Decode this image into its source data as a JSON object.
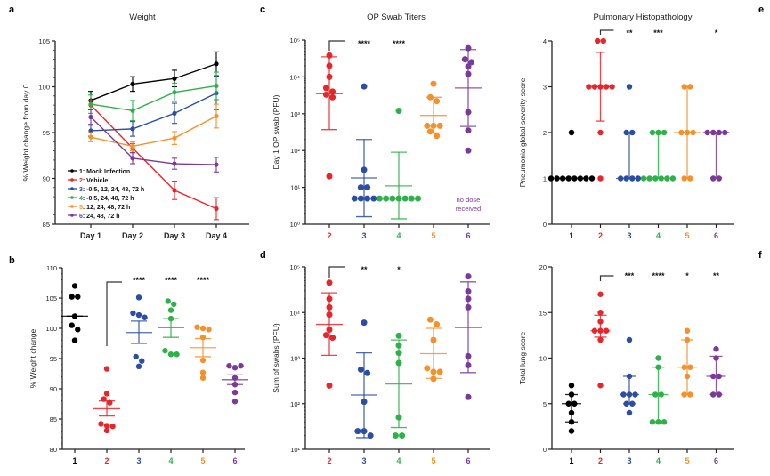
{
  "colors": {
    "g1": "#000000",
    "g2": "#e8262a",
    "g3": "#2b4ea2",
    "g4": "#2fb04a",
    "g5": "#f5912b",
    "g6": "#7a3b98",
    "axis": "#222222"
  },
  "chart_data": [
    {
      "id": "a",
      "panel_label": "a",
      "type": "line",
      "title": "Weight",
      "xlabel": "",
      "ylabel": "% Weight change from day 0",
      "categories": [
        "Day 1",
        "Day 2",
        "Day 3",
        "Day 4"
      ],
      "ylim": [
        85,
        105
      ],
      "yticks": [
        85,
        90,
        95,
        100,
        105
      ],
      "legend_position": "bottom-left",
      "series": [
        {
          "name": "1: Mock Infection",
          "num": "1",
          "label": ": Mock Infection",
          "color": "g1",
          "values": [
            98.5,
            100.3,
            100.9,
            102.5
          ],
          "err": [
            1.0,
            0.8,
            0.9,
            1.3
          ]
        },
        {
          "name": "2: Vehicle",
          "num": "2",
          "label": ": Vehicle",
          "color": "g2",
          "values": [
            98.0,
            93.3,
            88.7,
            86.7
          ],
          "err": [
            0.5,
            0.5,
            1.0,
            1.2
          ]
        },
        {
          "name": "3: -0.5, 12, 24, 48, 72 h",
          "num": "3",
          "label": ": -0.5, 12, 24, 48, 72 h",
          "color": "g3",
          "values": [
            95.2,
            95.4,
            97.1,
            99.3
          ],
          "err": [
            0.6,
            0.8,
            1.1,
            1.8
          ]
        },
        {
          "name": "4: -0.5, 24, 48, 72 h",
          "num": "4",
          "label": ": -0.5, 24, 48, 72 h",
          "color": "g4",
          "values": [
            98.1,
            97.4,
            99.4,
            100.1
          ],
          "err": [
            1.0,
            1.1,
            1.0,
            1.5
          ]
        },
        {
          "name": "5: 12, 24, 48, 72 h",
          "num": "5",
          "label": ": 12, 24, 48, 72 h",
          "color": "g5",
          "values": [
            94.5,
            93.5,
            94.4,
            96.8
          ],
          "err": [
            0.5,
            0.5,
            0.7,
            1.3
          ]
        },
        {
          "name": "6: 24, 48, 72 h",
          "num": "6",
          "label": ": 24, 48, 72 h",
          "color": "g6",
          "values": [
            96.7,
            92.2,
            91.6,
            91.5
          ],
          "err": [
            0.8,
            0.6,
            0.6,
            0.8
          ]
        }
      ]
    },
    {
      "id": "b",
      "panel_label": "b",
      "type": "scatter",
      "title": "",
      "xlabel": "",
      "ylabel": "% Weight change",
      "categories": [
        "1",
        "2",
        "3",
        "4",
        "5",
        "6"
      ],
      "ylim": [
        80,
        110
      ],
      "yticks": [
        80,
        85,
        90,
        95,
        100,
        105,
        110
      ],
      "comparison_ref": "2",
      "groups": [
        {
          "cat": "1",
          "color": "g1",
          "points": [
            107.0,
            105.2,
            105.2,
            102.0,
            100.5,
            99.8,
            98.0
          ],
          "mean": 102.0,
          "err": [
            102.0,
            102.0
          ],
          "sig": ""
        },
        {
          "cat": "2",
          "color": "g2",
          "points": [
            93.3,
            89.2,
            88.3,
            87.7,
            84.2,
            83.9,
            83.8,
            83.1
          ],
          "mean": 86.7,
          "err": [
            85.5,
            88.0
          ],
          "sig": ""
        },
        {
          "cat": "3",
          "color": "g3",
          "points": [
            105.1,
            102.5,
            102.2,
            101.8,
            95.3,
            94.6,
            93.7
          ],
          "mean": 99.3,
          "err": [
            97.5,
            101.2
          ],
          "sig": "****"
        },
        {
          "cat": "4",
          "color": "g4",
          "points": [
            104.5,
            104.0,
            103.0,
            101.6,
            96.3,
            95.7,
            95.7
          ],
          "mean": 100.1,
          "err": [
            98.5,
            101.6
          ],
          "sig": "****"
        },
        {
          "cat": "5",
          "color": "g5",
          "points": [
            100.2,
            100.0,
            99.8,
            98.5,
            94.7,
            92.7,
            91.8
          ],
          "mean": 96.8,
          "err": [
            95.3,
            98.3
          ],
          "sig": "****"
        },
        {
          "cat": "6",
          "color": "g6",
          "points": [
            93.8,
            93.5,
            93.8,
            91.8,
            90.7,
            89.4,
            87.9
          ],
          "mean": 91.5,
          "err": [
            90.7,
            92.3
          ],
          "sig": ""
        }
      ]
    },
    {
      "id": "c",
      "panel_label": "c",
      "type": "scatter",
      "title": "OP Swab Titers",
      "xlabel": "",
      "ylabel": "Day 1 OP swab (PFU)",
      "yscale": "log",
      "categories": [
        "2",
        "3",
        "4",
        "5",
        "6"
      ],
      "ylim": [
        1,
        100000
      ],
      "yticks": [
        1,
        10,
        100,
        1000,
        10000,
        100000
      ],
      "ytick_labels": [
        "10⁰",
        "10¹",
        "10²",
        "10³",
        "10⁴",
        "10⁵"
      ],
      "comparison_ref": "2",
      "annotation": [
        "no dose",
        "received"
      ],
      "groups": [
        {
          "cat": "2",
          "color": "g2",
          "points": [
            38000,
            20000,
            10000,
            5000,
            4000,
            3300,
            2800,
            20
          ],
          "mean": 3500,
          "err": [
            370,
            35000
          ],
          "sig": ""
        },
        {
          "cat": "3",
          "color": "g3",
          "points": [
            5500,
            30,
            10,
            10,
            5,
            5,
            5,
            5
          ],
          "mean": 18,
          "err": [
            1.6,
            200
          ],
          "sig": "****"
        },
        {
          "cat": "4",
          "color": "g4",
          "points": [
            1200,
            5,
            5,
            5,
            5,
            5,
            5,
            5
          ],
          "mean": 11,
          "err": [
            1.4,
            90
          ],
          "sig": "****"
        },
        {
          "cat": "5",
          "color": "g5",
          "points": [
            6500,
            2800,
            2200,
            470,
            470,
            470,
            330,
            250
          ],
          "mean": 900,
          "err": [
            300,
            2800
          ],
          "sig": ""
        },
        {
          "cat": "6",
          "color": "g6",
          "points": [
            60000,
            30000,
            25000,
            19000,
            12000,
            1100,
            350,
            100
          ],
          "mean": 5000,
          "err": [
            450,
            55000
          ],
          "sig": ""
        }
      ]
    },
    {
      "id": "d",
      "panel_label": "d",
      "type": "scatter",
      "title": "",
      "xlabel": "",
      "ylabel": "Sum of swabs (PFU)",
      "yscale": "log",
      "categories": [
        "2",
        "3",
        "4",
        "5",
        "6"
      ],
      "ylim": [
        10,
        100000
      ],
      "yticks": [
        10,
        100,
        1000,
        10000,
        100000
      ],
      "ytick_labels": [
        "10¹",
        "10²",
        "10³",
        "10⁴",
        "10⁵"
      ],
      "comparison_ref": "2",
      "groups": [
        {
          "cat": "2",
          "color": "g2",
          "points": [
            45000,
            20000,
            13000,
            9000,
            4200,
            3200,
            2800,
            250
          ],
          "mean": 5500,
          "err": [
            1150,
            27000
          ],
          "sig": ""
        },
        {
          "cat": "3",
          "color": "g3",
          "points": [
            6000,
            560,
            470,
            110,
            25,
            25,
            20
          ],
          "mean": 155,
          "err": [
            18,
            1300
          ],
          "sig": "**"
        },
        {
          "cat": "4",
          "color": "g4",
          "points": [
            3100,
            1900,
            1300,
            780,
            50,
            20,
            20
          ],
          "mean": 270,
          "err": [
            30,
            2500
          ],
          "sig": "*"
        },
        {
          "cat": "5",
          "color": "g5",
          "points": [
            7000,
            5500,
            2500,
            600,
            500,
            500,
            350
          ],
          "mean": 1250,
          "err": [
            360,
            4500
          ],
          "sig": ""
        },
        {
          "cat": "6",
          "color": "g6",
          "points": [
            62000,
            29000,
            20000,
            13000,
            1100,
            700,
            140
          ],
          "mean": 4700,
          "err": [
            480,
            47000
          ],
          "sig": ""
        }
      ]
    },
    {
      "id": "e",
      "panel_label": "e",
      "type": "scatter",
      "title": "Pulmonary Histopathology",
      "xlabel": "",
      "ylabel": "Pneumonia global severity score",
      "categories": [
        "1",
        "2",
        "3",
        "4",
        "5",
        "6"
      ],
      "ylim": [
        0,
        4
      ],
      "yticks": [
        0,
        1,
        2,
        3,
        4
      ],
      "comparison_ref": "2",
      "groups": [
        {
          "cat": "1",
          "color": "g1",
          "points": [
            2,
            1,
            1,
            1,
            1,
            1,
            1,
            1,
            1
          ],
          "mean": 1,
          "err": [
            1,
            1
          ],
          "sig": ""
        },
        {
          "cat": "2",
          "color": "g2",
          "points": [
            4,
            4,
            3,
            3,
            3,
            3,
            3,
            2,
            1
          ],
          "mean": 3,
          "err": [
            2.25,
            3.75
          ],
          "sig": ""
        },
        {
          "cat": "3",
          "color": "g3",
          "points": [
            3,
            2,
            2,
            1,
            1,
            1,
            1
          ],
          "mean": 1,
          "err": [
            1,
            2
          ],
          "sig": "**"
        },
        {
          "cat": "4",
          "color": "g4",
          "points": [
            2,
            2,
            2,
            1,
            1,
            1,
            1,
            1,
            1
          ],
          "mean": 1,
          "err": [
            1,
            2
          ],
          "sig": "***"
        },
        {
          "cat": "5",
          "color": "g5",
          "points": [
            3,
            3,
            2,
            2,
            2,
            1,
            1
          ],
          "mean": 2,
          "err": [
            1,
            3
          ],
          "sig": ""
        },
        {
          "cat": "6",
          "color": "g6",
          "points": [
            2,
            2,
            2,
            2,
            1,
            1
          ],
          "mean": 2,
          "err": [
            1,
            2
          ],
          "sig": "*"
        }
      ]
    },
    {
      "id": "f",
      "panel_label": "f",
      "type": "scatter",
      "title": "",
      "xlabel": "",
      "ylabel": "Total lung score",
      "categories": [
        "1",
        "2",
        "3",
        "4",
        "5",
        "6"
      ],
      "ylim": [
        0,
        20
      ],
      "yticks": [
        0,
        5,
        10,
        15,
        20
      ],
      "comparison_ref": "2",
      "groups": [
        {
          "cat": "1",
          "color": "g1",
          "points": [
            7,
            6,
            5,
            5,
            4,
            3,
            2
          ],
          "mean": 5,
          "err": [
            3,
            6
          ],
          "sig": ""
        },
        {
          "cat": "2",
          "color": "g2",
          "points": [
            17,
            15,
            14,
            13,
            13,
            13,
            12,
            7
          ],
          "mean": 13,
          "err": [
            12.3,
            14.7
          ],
          "sig": ""
        },
        {
          "cat": "3",
          "color": "g3",
          "points": [
            12,
            8,
            6,
            6,
            6,
            5,
            5,
            4
          ],
          "mean": 6,
          "err": [
            5,
            8
          ],
          "sig": "***"
        },
        {
          "cat": "4",
          "color": "g4",
          "points": [
            10,
            9,
            6,
            6,
            3,
            3,
            3
          ],
          "mean": 6,
          "err": [
            3,
            9
          ],
          "sig": "****"
        },
        {
          "cat": "5",
          "color": "g5",
          "points": [
            13,
            12,
            9,
            9,
            8,
            6,
            6
          ],
          "mean": 9,
          "err": [
            6,
            12
          ],
          "sig": "*"
        },
        {
          "cat": "6",
          "color": "g6",
          "points": [
            11,
            10,
            8,
            8,
            6,
            6
          ],
          "mean": 8,
          "err": [
            6,
            10.2
          ],
          "sig": "**"
        }
      ]
    }
  ]
}
